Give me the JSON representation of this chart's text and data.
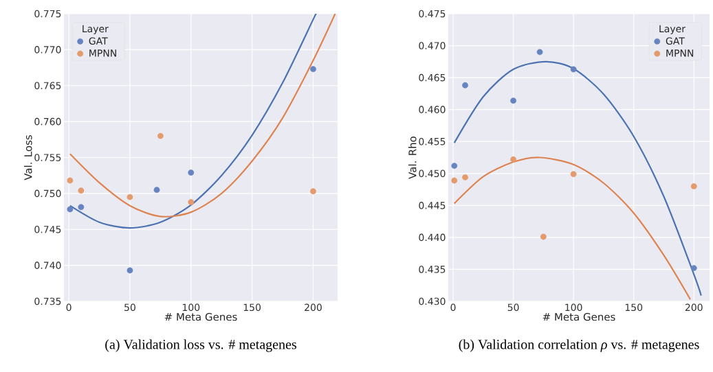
{
  "chart_data": [
    {
      "type": "scatter",
      "title": "(a) Validation loss vs. # metagenes",
      "xlabel": "# Meta Genes",
      "ylabel": "Val. Loss",
      "legend_title": "Layer",
      "legend": "top left",
      "grid": true,
      "marker": "circle",
      "xlim": [
        -4,
        220
      ],
      "xticks": [
        0,
        50,
        100,
        150,
        200
      ],
      "ylim": [
        0.735,
        0.775
      ],
      "yticks": [
        0.735,
        {
          "value": 0.74,
          "label": "0.740"
        },
        0.745,
        {
          "value": 0.75,
          "label": "0.750"
        },
        0.755,
        {
          "value": 0.76,
          "label": "0.760"
        },
        0.765,
        {
          "value": 0.77,
          "label": "0.770"
        },
        0.775
      ],
      "series": [
        {
          "name": "GAT",
          "color": "#6685c0",
          "x": [
            1,
            10,
            50,
            72,
            100,
            200
          ],
          "values": [
            0.7478,
            0.7481,
            0.7393,
            0.7505,
            0.7529,
            0.7673
          ]
        },
        {
          "name": "MPNN",
          "color": "#e39a6d",
          "x": [
            1,
            10,
            50,
            75,
            100,
            200
          ],
          "values": [
            0.7518,
            0.7504,
            0.7495,
            0.758,
            0.7488,
            0.7503
          ]
        },
        {
          "type": "line",
          "marker": "none",
          "color": "#4c72b0",
          "x": [
            1,
            25,
            50,
            75,
            100,
            125,
            150,
            175,
            200,
            202
          ],
          "values": [
            0.7483,
            0.746,
            0.7452,
            0.746,
            0.7484,
            0.7525,
            0.7581,
            0.7654,
            0.7742,
            0.7749
          ]
        },
        {
          "type": "line",
          "marker": "none",
          "color": "#dd8452",
          "x": [
            1,
            25,
            50,
            75,
            100,
            125,
            150,
            175,
            200,
            218
          ],
          "values": [
            0.7555,
            0.7515,
            0.7483,
            0.7468,
            0.7474,
            0.75,
            0.7545,
            0.7605,
            0.7685,
            0.775
          ]
        }
      ]
    },
    {
      "type": "scatter",
      "title": "(b) Validation correlation *ρ* vs. # metagenes",
      "xlabel": "# Meta Genes",
      "ylabel": "Val. Rho",
      "legend_title": "Layer",
      "legend": "top right",
      "grid": true,
      "marker": "circle",
      "xlim": [
        -4,
        213
      ],
      "xticks": [
        0,
        50,
        100,
        150,
        200
      ],
      "ylim": [
        0.43,
        0.475
      ],
      "yticks": [
        {
          "value": 0.43,
          "label": "0.430"
        },
        0.435,
        {
          "value": 0.44,
          "label": "0.440"
        },
        0.445,
        {
          "value": 0.45,
          "label": "0.450"
        },
        0.455,
        {
          "value": 0.46,
          "label": "0.460"
        },
        0.465,
        {
          "value": 0.47,
          "label": "0.470"
        },
        0.475
      ],
      "series": [
        {
          "name": "GAT",
          "color": "#6685c0",
          "x": [
            1,
            10,
            50,
            72,
            100,
            200
          ],
          "values": [
            0.4512,
            0.4638,
            0.4614,
            0.469,
            0.4663,
            0.4352
          ]
        },
        {
          "name": "MPNN",
          "color": "#e39a6d",
          "x": [
            1,
            10,
            50,
            75,
            100,
            200
          ],
          "values": [
            0.4489,
            0.4494,
            0.4522,
            0.4401,
            0.4499,
            0.448
          ]
        },
        {
          "type": "line",
          "marker": "none",
          "color": "#4c72b0",
          "x": [
            1,
            25,
            50,
            77,
            100,
            125,
            150,
            175,
            200,
            206
          ],
          "values": [
            0.4548,
            0.462,
            0.4663,
            0.4675,
            0.4664,
            0.4624,
            0.4558,
            0.4464,
            0.4342,
            0.4309
          ]
        },
        {
          "type": "line",
          "marker": "none",
          "color": "#dd8452",
          "x": [
            1,
            25,
            50,
            72,
            100,
            125,
            150,
            175,
            197
          ],
          "values": [
            0.4453,
            0.4495,
            0.4518,
            0.4525,
            0.4514,
            0.4485,
            0.4438,
            0.4372,
            0.4303
          ]
        }
      ]
    }
  ]
}
